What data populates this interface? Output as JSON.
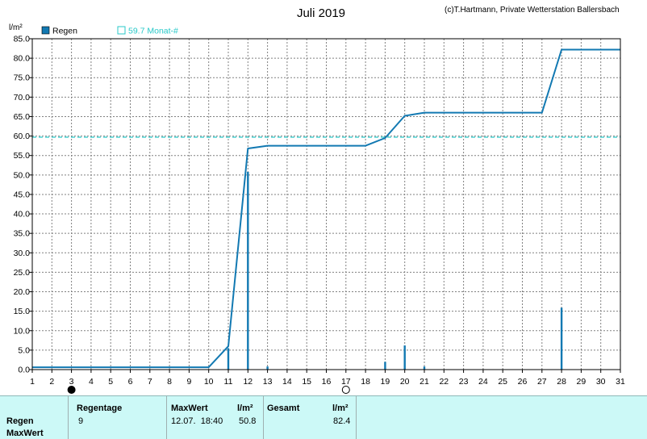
{
  "header": {
    "title": "Juli 2019",
    "copyright": "(c)T.Hartmann, Private Wetterstation Ballersbach",
    "y_unit": "l/m²"
  },
  "legend": {
    "series_label": "Regen",
    "ref_label": "59.7 Monat-#"
  },
  "colors": {
    "series": "#1279b2",
    "reference": "#28c9c9",
    "grid": "#808080",
    "footer_bg": "#ccf9f7"
  },
  "moon": {
    "new_moon_day": 3,
    "full_moon_day": 17
  },
  "chart_data": {
    "type": "bar",
    "title": "Juli 2019",
    "ylabel": "l/m²",
    "xlim": [
      1,
      31
    ],
    "ylim": [
      0,
      85
    ],
    "y_ticks": [
      "0.0",
      "5.0",
      "10.0",
      "15.0",
      "20.0",
      "25.0",
      "30.0",
      "35.0",
      "40.0",
      "45.0",
      "50.0",
      "55.0",
      "60.0",
      "65.0",
      "70.0",
      "75.0",
      "80.0",
      "85.0"
    ],
    "x_ticks": [
      "1",
      "2",
      "3",
      "4",
      "5",
      "6",
      "7",
      "8",
      "9",
      "10",
      "11",
      "12",
      "13",
      "14",
      "15",
      "16",
      "17",
      "18",
      "19",
      "20",
      "21",
      "22",
      "23",
      "24",
      "25",
      "26",
      "27",
      "28",
      "29",
      "30",
      "31"
    ],
    "grid": true,
    "legend_position": "top-left",
    "series": [
      {
        "name": "Regen",
        "type": "bar",
        "x": [
          11,
          12,
          13,
          19,
          20,
          21,
          28
        ],
        "values": [
          5.5,
          50.8,
          0.8,
          2.0,
          6.2,
          0.8,
          15.9
        ]
      },
      {
        "name": "Regen",
        "type": "line",
        "x": [
          1,
          10,
          11,
          12,
          13,
          18,
          19,
          20,
          21,
          27,
          28,
          31
        ],
        "values": [
          0.6,
          0.6,
          6.0,
          56.8,
          57.5,
          57.5,
          59.5,
          65.2,
          66.0,
          66.0,
          82.2,
          82.2
        ]
      }
    ],
    "reference_line": {
      "label": "59.7 Monat-#",
      "value": 59.7
    }
  },
  "footer": {
    "row_labels": [
      "Regen",
      "MaxWert"
    ],
    "regentage_header": "Regentage",
    "regentage_value": "9",
    "maxwert_header": "MaxWert",
    "maxwert_unit": "l/m²",
    "maxwert_date": "12.07.  18:40",
    "maxwert_value": "50.8",
    "gesamt_header": "Gesamt",
    "gesamt_unit": "l/m²",
    "gesamt_value": "82.4"
  }
}
